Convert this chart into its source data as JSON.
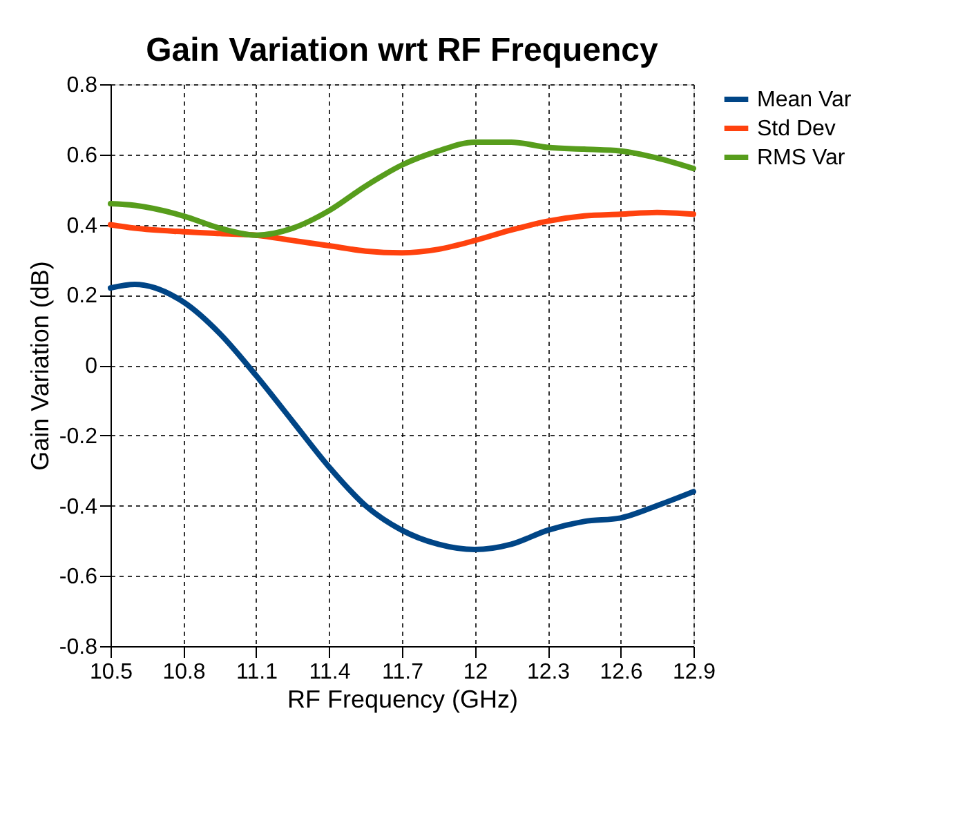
{
  "chart_data": {
    "type": "line",
    "title": "Gain Variation wrt RF Frequency",
    "xlabel": "RF Frequency (GHz)",
    "ylabel": "Gain Variation (dB)",
    "xlim": [
      10.5,
      12.9
    ],
    "xticks": [
      10.5,
      10.8,
      11.1,
      11.4,
      11.7,
      12,
      12.3,
      12.6,
      12.9
    ],
    "ylim": [
      -0.8,
      0.8
    ],
    "yticks": [
      -0.8,
      -0.6,
      -0.4,
      -0.2,
      0,
      0.2,
      0.4,
      0.6,
      0.8
    ],
    "grid": true,
    "legend": "right",
    "line_style": "solid",
    "marker": "none",
    "x": [
      10.5,
      10.6,
      10.8,
      10.95,
      11.1,
      11.25,
      11.4,
      11.55,
      11.7,
      11.85,
      12.0,
      12.15,
      12.3,
      12.45,
      12.6,
      12.75,
      12.9
    ],
    "series": [
      {
        "name": "Mean Var",
        "color": "#004586",
        "values": [
          0.22,
          0.23,
          0.18,
          0.09,
          -0.03,
          -0.16,
          -0.29,
          -0.4,
          -0.47,
          -0.51,
          -0.525,
          -0.51,
          -0.47,
          -0.445,
          -0.435,
          -0.4,
          -0.36
        ]
      },
      {
        "name": "Std Dev",
        "color": "#ff420e",
        "values": [
          0.4,
          0.39,
          0.38,
          0.375,
          0.37,
          0.355,
          0.34,
          0.325,
          0.32,
          0.33,
          0.355,
          0.385,
          0.41,
          0.425,
          0.43,
          0.435,
          0.43
        ]
      },
      {
        "name": "RMS Var",
        "color": "#579d1c",
        "values": [
          0.46,
          0.455,
          0.425,
          0.39,
          0.37,
          0.39,
          0.44,
          0.51,
          0.57,
          0.61,
          0.635,
          0.635,
          0.62,
          0.615,
          0.61,
          0.59,
          0.56
        ]
      }
    ]
  }
}
